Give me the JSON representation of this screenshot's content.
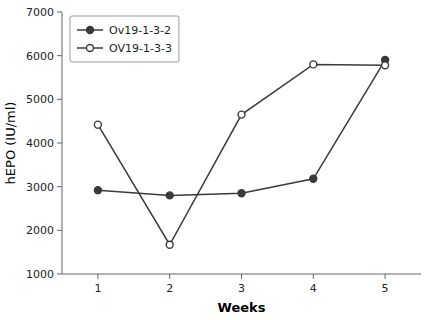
{
  "chart_data": {
    "type": "line",
    "x": [
      1,
      2,
      3,
      4,
      5
    ],
    "series": [
      {
        "name": "Ov19-1-3-2",
        "color": "#3a3a3a",
        "marker": "circle",
        "values": [
          2920,
          2800,
          2850,
          3180,
          5900
        ]
      },
      {
        "name": "OV19-1-3-3",
        "color": "#3a3a3a",
        "marker": "open-circle",
        "values": [
          4420,
          1670,
          4650,
          5800,
          5780
        ]
      }
    ],
    "xlabel": "Weeks",
    "ylabel": "hEPO (IU/ml)",
    "xlim": [
      0.5,
      5.5
    ],
    "ylim": [
      1000,
      7000
    ],
    "xticks": [
      1,
      2,
      3,
      4,
      5
    ],
    "yticks": [
      1000,
      2000,
      3000,
      4000,
      5000,
      6000,
      7000
    ],
    "grid": false,
    "legend": "upper-left"
  }
}
